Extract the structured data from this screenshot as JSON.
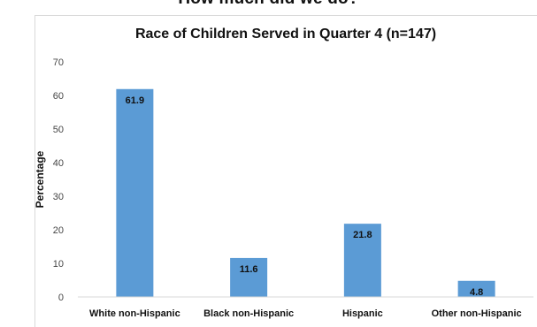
{
  "header": {
    "caption": "How much did we do?"
  },
  "colors": {
    "bar": "#5b9bd5",
    "grid": "#d9d9d9",
    "text": "#111111",
    "tick": "#444444"
  },
  "chart_data": {
    "type": "bar",
    "title": "Race of Children Served in Quarter 4 (n=147)",
    "xlabel": "",
    "ylabel": "Percentage",
    "categories": [
      "White non-Hispanic",
      "Black non-Hispanic",
      "Hispanic",
      "Other non-Hispanic"
    ],
    "values": [
      61.9,
      11.6,
      21.8,
      4.8
    ],
    "data_labels": [
      "61.9",
      "11.6",
      "21.8",
      "4.8"
    ],
    "ylim": [
      0,
      70
    ],
    "yticks": [
      0,
      10,
      20,
      30,
      40,
      50,
      60,
      70
    ],
    "grid": false,
    "legend": "none"
  }
}
